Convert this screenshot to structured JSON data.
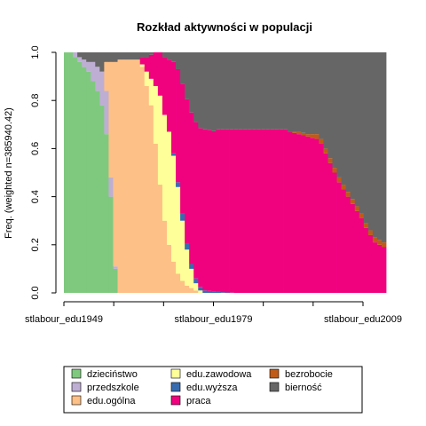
{
  "chart_data": {
    "type": "area",
    "subtype": "stacked-state-distribution",
    "title": "Rozkład aktywności w populacji",
    "xlabel": "",
    "ylabel": "Freq. (weighted n=385940.42)",
    "ylim": [
      0,
      1
    ],
    "y_ticks": [
      "0.0",
      "0.2",
      "0.4",
      "0.6",
      "0.8",
      "1.0"
    ],
    "x_tick_labels": [
      "stlabour_edu1949",
      "stlabour_edu1979",
      "stlabour_edu2009"
    ],
    "x_tick_count": 7,
    "n_time_points": 72,
    "grid": false,
    "legend_position": "bottom",
    "series": [
      {
        "name": "dzieciństwo",
        "color": "#7FC97F",
        "values": [
          1.0,
          1.0,
          0.98,
          0.96,
          0.94,
          0.92,
          0.88,
          0.84,
          0.78,
          0.66,
          0.4,
          0.1,
          0.0,
          0.0,
          0.0,
          0.0,
          0.0,
          0.0,
          0.0,
          0.0,
          0.0,
          0.0,
          0.0,
          0.0,
          0.0,
          0.0,
          0.0,
          0.0,
          0.0,
          0.0,
          0.0,
          0.0,
          0.0,
          0.0,
          0.0,
          0.0,
          0.0,
          0.0,
          0.0,
          0.0,
          0.0,
          0.0,
          0.0,
          0.0,
          0.0,
          0.0,
          0.0,
          0.0,
          0.0,
          0.0,
          0.0,
          0.0,
          0.0,
          0.0,
          0.0,
          0.0,
          0.0,
          0.0,
          0.0,
          0.0,
          0.0,
          0.0,
          0.0,
          0.0,
          0.0,
          0.0,
          0.0,
          0.0,
          0.0,
          0.0,
          0.0,
          0.0
        ]
      },
      {
        "name": "przedszkole",
        "color": "#BEAED4",
        "values": [
          0.0,
          0.0,
          0.02,
          0.02,
          0.03,
          0.04,
          0.08,
          0.1,
          0.14,
          0.18,
          0.08,
          0.01,
          0.0,
          0.0,
          0.0,
          0.0,
          0.0,
          0.0,
          0.0,
          0.0,
          0.0,
          0.0,
          0.0,
          0.0,
          0.0,
          0.0,
          0.0,
          0.0,
          0.0,
          0.0,
          0.0,
          0.0,
          0.0,
          0.0,
          0.0,
          0.0,
          0.0,
          0.0,
          0.0,
          0.0,
          0.0,
          0.0,
          0.0,
          0.0,
          0.0,
          0.0,
          0.0,
          0.0,
          0.0,
          0.0,
          0.0,
          0.0,
          0.0,
          0.0,
          0.0,
          0.0,
          0.0,
          0.0,
          0.0,
          0.0,
          0.0,
          0.0,
          0.0,
          0.0,
          0.0,
          0.0,
          0.0,
          0.0,
          0.0,
          0.0,
          0.0,
          0.0
        ]
      },
      {
        "name": "edu.ogólna",
        "color": "#FDC086",
        "values": [
          0.0,
          0.0,
          0.0,
          0.0,
          0.0,
          0.0,
          0.0,
          0.0,
          0.0,
          0.12,
          0.48,
          0.85,
          0.97,
          0.97,
          0.97,
          0.97,
          0.97,
          0.94,
          0.86,
          0.78,
          0.62,
          0.45,
          0.3,
          0.2,
          0.13,
          0.08,
          0.05,
          0.03,
          0.02,
          0.01,
          0.0,
          0.0,
          0.0,
          0.0,
          0.0,
          0.0,
          0.0,
          0.0,
          0.0,
          0.0,
          0.0,
          0.0,
          0.0,
          0.0,
          0.0,
          0.0,
          0.0,
          0.0,
          0.0,
          0.0,
          0.0,
          0.0,
          0.0,
          0.0,
          0.0,
          0.0,
          0.0,
          0.0,
          0.0,
          0.0,
          0.0,
          0.0,
          0.0,
          0.0,
          0.0,
          0.0,
          0.0,
          0.0,
          0.0,
          0.0,
          0.0,
          0.0
        ]
      },
      {
        "name": "edu.zawodowa",
        "color": "#FFFF99",
        "values": [
          0.0,
          0.0,
          0.0,
          0.0,
          0.0,
          0.0,
          0.0,
          0.0,
          0.0,
          0.0,
          0.0,
          0.0,
          0.0,
          0.0,
          0.0,
          0.0,
          0.0,
          0.01,
          0.06,
          0.11,
          0.24,
          0.37,
          0.44,
          0.47,
          0.44,
          0.36,
          0.25,
          0.15,
          0.08,
          0.03,
          0.01,
          0.0,
          0.0,
          0.0,
          0.0,
          0.0,
          0.0,
          0.0,
          0.0,
          0.0,
          0.0,
          0.0,
          0.0,
          0.0,
          0.0,
          0.0,
          0.0,
          0.0,
          0.0,
          0.0,
          0.0,
          0.0,
          0.0,
          0.0,
          0.0,
          0.0,
          0.0,
          0.0,
          0.0,
          0.0,
          0.0,
          0.0,
          0.0,
          0.0,
          0.0,
          0.0,
          0.0,
          0.0,
          0.0,
          0.0,
          0.0,
          0.0
        ]
      },
      {
        "name": "edu.wyższa",
        "color": "#386CB0",
        "values": [
          0.0,
          0.0,
          0.0,
          0.0,
          0.0,
          0.0,
          0.0,
          0.0,
          0.0,
          0.0,
          0.0,
          0.0,
          0.0,
          0.0,
          0.0,
          0.0,
          0.0,
          0.0,
          0.0,
          0.0,
          0.0,
          0.0,
          0.0,
          0.0,
          0.01,
          0.02,
          0.03,
          0.025,
          0.02,
          0.02,
          0.015,
          0.01,
          0.008,
          0.005,
          0.004,
          0.003,
          0.002,
          0.001,
          0.0,
          0.0,
          0.0,
          0.0,
          0.0,
          0.0,
          0.0,
          0.0,
          0.0,
          0.0,
          0.0,
          0.0,
          0.0,
          0.0,
          0.0,
          0.0,
          0.0,
          0.0,
          0.0,
          0.0,
          0.0,
          0.0,
          0.0,
          0.0,
          0.0,
          0.0,
          0.0,
          0.0,
          0.0,
          0.0,
          0.0,
          0.0,
          0.0,
          0.0
        ]
      },
      {
        "name": "praca",
        "color": "#F0027F",
        "values": [
          0.0,
          0.0,
          0.0,
          0.0,
          0.0,
          0.0,
          0.0,
          0.0,
          0.0,
          0.0,
          0.0,
          0.0,
          0.0,
          0.0,
          0.0,
          0.0,
          0.0,
          0.03,
          0.06,
          0.1,
          0.14,
          0.18,
          0.24,
          0.3,
          0.38,
          0.47,
          0.54,
          0.6,
          0.63,
          0.65,
          0.66,
          0.67,
          0.67,
          0.667,
          0.676,
          0.677,
          0.678,
          0.679,
          0.68,
          0.68,
          0.68,
          0.68,
          0.68,
          0.68,
          0.68,
          0.68,
          0.68,
          0.68,
          0.68,
          0.68,
          0.67,
          0.665,
          0.66,
          0.655,
          0.65,
          0.645,
          0.64,
          0.62,
          0.58,
          0.54,
          0.5,
          0.46,
          0.43,
          0.4,
          0.37,
          0.34,
          0.31,
          0.27,
          0.24,
          0.21,
          0.2,
          0.19
        ]
      },
      {
        "name": "bezrobocie",
        "color": "#BF5B17",
        "values": [
          0.0,
          0.0,
          0.0,
          0.0,
          0.0,
          0.0,
          0.0,
          0.0,
          0.0,
          0.0,
          0.0,
          0.0,
          0.0,
          0.0,
          0.0,
          0.0,
          0.0,
          0.0,
          0.0,
          0.0,
          0.0,
          0.0,
          0.0,
          0.0,
          0.0,
          0.0,
          0.0,
          0.0,
          0.0,
          0.0,
          0.0,
          0.0,
          0.0,
          0.0,
          0.0,
          0.0,
          0.0,
          0.0,
          0.0,
          0.0,
          0.0,
          0.0,
          0.0,
          0.0,
          0.0,
          0.0,
          0.0,
          0.0,
          0.0,
          0.0,
          0.0,
          0.005,
          0.01,
          0.01,
          0.01,
          0.015,
          0.02,
          0.02,
          0.02,
          0.02,
          0.02,
          0.02,
          0.02,
          0.02,
          0.02,
          0.02,
          0.02,
          0.02,
          0.02,
          0.02,
          0.02,
          0.02
        ]
      },
      {
        "name": "bierność",
        "color": "#666666",
        "values": [
          0.0,
          0.0,
          0.0,
          0.02,
          0.03,
          0.04,
          0.04,
          0.06,
          0.08,
          0.04,
          0.04,
          0.04,
          0.03,
          0.03,
          0.03,
          0.03,
          0.03,
          0.02,
          0.02,
          0.01,
          0.0,
          0.0,
          0.02,
          0.03,
          0.04,
          0.07,
          0.13,
          0.195,
          0.25,
          0.29,
          0.315,
          0.32,
          0.322,
          0.328,
          0.32,
          0.32,
          0.32,
          0.32,
          0.32,
          0.32,
          0.32,
          0.32,
          0.32,
          0.32,
          0.32,
          0.32,
          0.32,
          0.32,
          0.32,
          0.32,
          0.33,
          0.33,
          0.33,
          0.335,
          0.34,
          0.34,
          0.34,
          0.36,
          0.4,
          0.44,
          0.48,
          0.52,
          0.55,
          0.58,
          0.61,
          0.64,
          0.67,
          0.71,
          0.74,
          0.77,
          0.78,
          0.79
        ]
      }
    ]
  }
}
